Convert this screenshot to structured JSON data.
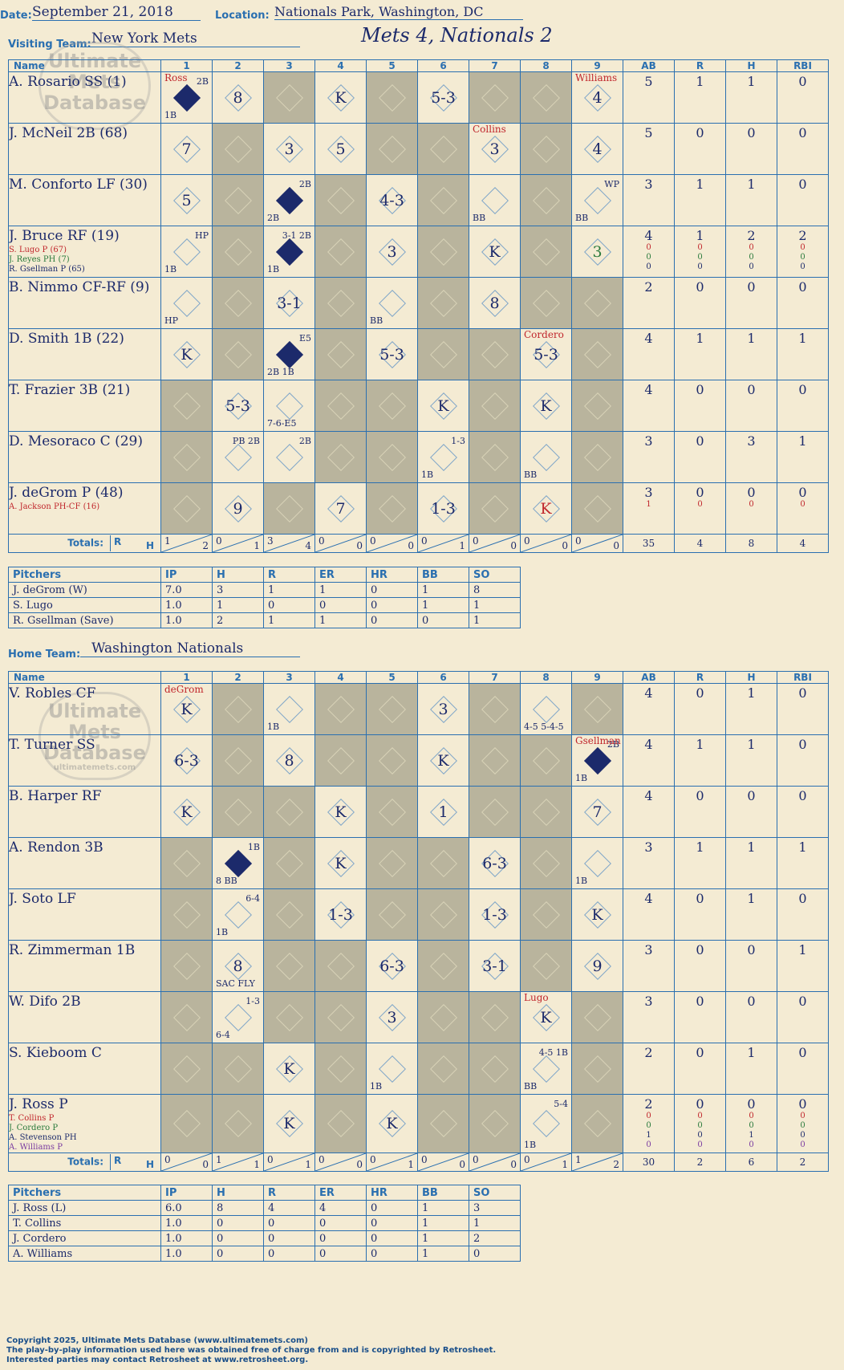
{
  "header": {
    "date_label": "Date:",
    "date": "September 21, 2018",
    "location_label": "Location:",
    "location": "Nationals Park, Washington, DC",
    "visiting_label": "Visiting Team:",
    "visiting_team": "New York Mets",
    "home_label": "Home Team:",
    "home_team": "Washington Nationals",
    "result": "Mets 4, Nationals 2"
  },
  "columns": {
    "name": "Name",
    "innings": [
      "1",
      "2",
      "3",
      "4",
      "5",
      "6",
      "7",
      "8",
      "9"
    ],
    "stats": [
      "AB",
      "R",
      "H",
      "RBI"
    ],
    "totals": "Totals:",
    "r": "R",
    "h": "H"
  },
  "pitch_columns": [
    "Pitchers",
    "IP",
    "H",
    "R",
    "ER",
    "HR",
    "BB",
    "SO"
  ],
  "watermark": {
    "line1": "Ultimate",
    "line2": "Mets",
    "line3": "Database",
    "site": "ultimatemets.com"
  },
  "visitors": {
    "players": [
      {
        "name": "A. Rosario SS (1)",
        "subs": [],
        "stats": [
          "5",
          "1",
          "1",
          "0"
        ],
        "substats": []
      },
      {
        "name": "J. McNeil 2B (68)",
        "subs": [],
        "stats": [
          "5",
          "0",
          "0",
          "0"
        ],
        "substats": []
      },
      {
        "name": "M. Conforto LF (30)",
        "subs": [],
        "stats": [
          "3",
          "1",
          "1",
          "0"
        ],
        "substats": []
      },
      {
        "name": "J. Bruce RF (19)",
        "subs": [
          "S. Lugo P (67)",
          "J. Reyes PH (7)",
          "R. Gsellman P (65)"
        ],
        "stats": [
          "4",
          "1",
          "2",
          "2"
        ],
        "substats": [
          [
            "0",
            "0",
            "0",
            "0"
          ],
          [
            "0",
            "0",
            "0",
            "0"
          ],
          [
            "0",
            "0",
            "0",
            "0"
          ]
        ]
      },
      {
        "name": "B. Nimmo CF-RF (9)",
        "subs": [],
        "stats": [
          "2",
          "0",
          "0",
          "0"
        ],
        "substats": []
      },
      {
        "name": "D. Smith 1B (22)",
        "subs": [],
        "stats": [
          "4",
          "1",
          "1",
          "1"
        ],
        "substats": []
      },
      {
        "name": "T. Frazier 3B (21)",
        "subs": [],
        "stats": [
          "4",
          "0",
          "0",
          "0"
        ],
        "substats": []
      },
      {
        "name": "D. Mesoraco C (29)",
        "subs": [],
        "stats": [
          "3",
          "0",
          "3",
          "1"
        ],
        "substats": []
      },
      {
        "name": "J. deGrom P (48)",
        "subs": [
          "A. Jackson PH-CF (16)"
        ],
        "stats": [
          "3",
          "0",
          "0",
          "0"
        ],
        "substats": [
          [
            "1",
            "0",
            "0",
            "0"
          ]
        ]
      }
    ],
    "cells": [
      [
        {
          "r": "",
          "tl": "2B",
          "bl": "1B",
          "scored": true,
          "top": "Ross"
        },
        {
          "r": "8"
        },
        {
          "r": "",
          "shade": true
        },
        {
          "r": "K"
        },
        {
          "r": "",
          "shade": true
        },
        {
          "r": "5-3"
        },
        {
          "r": "",
          "shade": true
        },
        {
          "r": "",
          "shade": true
        },
        {
          "r": "4",
          "top": "Williams"
        }
      ],
      [
        {
          "r": "7"
        },
        {
          "r": "",
          "shade": true
        },
        {
          "r": "3"
        },
        {
          "r": "5"
        },
        {
          "r": "",
          "shade": true
        },
        {
          "r": "",
          "shade": true
        },
        {
          "r": "3",
          "top": "Collins"
        },
        {
          "r": "",
          "shade": true
        },
        {
          "r": "4"
        }
      ],
      [
        {
          "r": "5"
        },
        {
          "r": "",
          "shade": true
        },
        {
          "r": "",
          "tl": "2B",
          "bl": "2B",
          "scored": true
        },
        {
          "r": "",
          "shade": true
        },
        {
          "r": "4-3"
        },
        {
          "r": "",
          "shade": true
        },
        {
          "r": "",
          "bl": "BB"
        },
        {
          "r": "",
          "shade": true
        },
        {
          "r": "",
          "tl": "WP",
          "bl": "BB"
        }
      ],
      [
        {
          "r": "",
          "tl": "HP",
          "bl": "1B"
        },
        {
          "r": "",
          "shade": true
        },
        {
          "r": "",
          "tl": "3-1 2B",
          "bl": "1B",
          "scored": true
        },
        {
          "r": "",
          "shade": true
        },
        {
          "r": "3"
        },
        {
          "r": "",
          "shade": true
        },
        {
          "r": "K"
        },
        {
          "r": "",
          "shade": true
        },
        {
          "r": "3",
          "green": true
        }
      ],
      [
        {
          "r": "",
          "bl": "HP"
        },
        {
          "r": "",
          "shade": true
        },
        {
          "r": "3-1"
        },
        {
          "r": "",
          "shade": true
        },
        {
          "r": "",
          "bl": "BB"
        },
        {
          "r": "",
          "shade": true
        },
        {
          "r": "8"
        },
        {
          "r": "",
          "shade": true
        },
        {
          "r": "",
          "shade": true
        }
      ],
      [
        {
          "r": "K"
        },
        {
          "r": "",
          "shade": true
        },
        {
          "r": "",
          "tl": "E5",
          "bl": "2B 1B",
          "scored": true
        },
        {
          "r": "",
          "shade": true
        },
        {
          "r": "5-3"
        },
        {
          "r": "",
          "shade": true
        },
        {
          "r": "",
          "shade": true
        },
        {
          "r": "5-3",
          "top": "Cordero"
        },
        {
          "r": "",
          "shade": true
        }
      ],
      [
        {
          "r": "",
          "shade": true
        },
        {
          "r": "5-3"
        },
        {
          "r": "",
          "bl": "7-6-E5"
        },
        {
          "r": "",
          "shade": true
        },
        {
          "r": "",
          "shade": true
        },
        {
          "r": "K"
        },
        {
          "r": "",
          "shade": true
        },
        {
          "r": "K"
        },
        {
          "r": "",
          "shade": true
        }
      ],
      [
        {
          "r": "",
          "shade": true
        },
        {
          "r": "",
          "tl": "PB 2B"
        },
        {
          "r": "",
          "tl": "2B"
        },
        {
          "r": "",
          "shade": true
        },
        {
          "r": "",
          "shade": true
        },
        {
          "r": "",
          "tl": "1-3",
          "bl": "1B"
        },
        {
          "r": "",
          "shade": true
        },
        {
          "r": "",
          "bl": "BB"
        },
        {
          "r": "",
          "shade": true
        }
      ],
      [
        {
          "r": "",
          "shade": true
        },
        {
          "r": "9"
        },
        {
          "r": "",
          "shade": true
        },
        {
          "r": "7"
        },
        {
          "r": "",
          "shade": true
        },
        {
          "r": "1-3"
        },
        {
          "r": "",
          "shade": true
        },
        {
          "r": "K",
          "red": true
        },
        {
          "r": "",
          "shade": true
        }
      ]
    ],
    "inning_totals": [
      [
        "1",
        "2"
      ],
      [
        "0",
        "1"
      ],
      [
        "3",
        "4"
      ],
      [
        "0",
        "0"
      ],
      [
        "0",
        "0"
      ],
      [
        "0",
        "1"
      ],
      [
        "0",
        "0"
      ],
      [
        "0",
        "0"
      ],
      [
        "0",
        "0"
      ]
    ],
    "totals": [
      "35",
      "4",
      "8",
      "4"
    ],
    "pitchers": [
      [
        "J. deGrom (W)",
        "7.0",
        "3",
        "1",
        "1",
        "0",
        "1",
        "8"
      ],
      [
        "S. Lugo",
        "1.0",
        "1",
        "0",
        "0",
        "0",
        "1",
        "1"
      ],
      [
        "R. Gsellman (Save)",
        "1.0",
        "2",
        "1",
        "1",
        "0",
        "0",
        "1"
      ]
    ]
  },
  "home": {
    "players": [
      {
        "name": "V. Robles CF",
        "subs": [],
        "stats": [
          "4",
          "0",
          "1",
          "0"
        ],
        "substats": []
      },
      {
        "name": "T. Turner SS",
        "subs": [],
        "stats": [
          "4",
          "1",
          "1",
          "0"
        ],
        "substats": []
      },
      {
        "name": "B. Harper RF",
        "subs": [],
        "stats": [
          "4",
          "0",
          "0",
          "0"
        ],
        "substats": []
      },
      {
        "name": "A. Rendon 3B",
        "subs": [],
        "stats": [
          "3",
          "1",
          "1",
          "1"
        ],
        "substats": []
      },
      {
        "name": "J. Soto LF",
        "subs": [],
        "stats": [
          "4",
          "0",
          "1",
          "0"
        ],
        "substats": []
      },
      {
        "name": "R. Zimmerman 1B",
        "subs": [],
        "stats": [
          "3",
          "0",
          "0",
          "1"
        ],
        "substats": []
      },
      {
        "name": "W. Difo 2B",
        "subs": [],
        "stats": [
          "3",
          "0",
          "0",
          "0"
        ],
        "substats": []
      },
      {
        "name": "S. Kieboom C",
        "subs": [],
        "stats": [
          "2",
          "0",
          "1",
          "0"
        ],
        "substats": []
      },
      {
        "name": "J. Ross P",
        "subs": [
          "T. Collins P",
          "J. Cordero P",
          "A. Stevenson PH",
          "A. Williams P"
        ],
        "stats": [
          "2",
          "0",
          "0",
          "0"
        ],
        "substats": [
          [
            "0",
            "0",
            "0",
            "0"
          ],
          [
            "0",
            "0",
            "0",
            "0"
          ],
          [
            "1",
            "0",
            "1",
            "0"
          ],
          [
            "0",
            "0",
            "0",
            "0"
          ]
        ]
      }
    ],
    "cells": [
      [
        {
          "r": "K",
          "top": "deGrom"
        },
        {
          "r": "",
          "shade": true
        },
        {
          "r": "",
          "bl": "1B"
        },
        {
          "r": "",
          "shade": true
        },
        {
          "r": "",
          "shade": true
        },
        {
          "r": "3"
        },
        {
          "r": "",
          "shade": true
        },
        {
          "r": "",
          "bl": "4-5 5-4-5"
        },
        {
          "r": "",
          "shade": true
        }
      ],
      [
        {
          "r": "6-3"
        },
        {
          "r": "",
          "shade": true
        },
        {
          "r": "8"
        },
        {
          "r": "",
          "shade": true
        },
        {
          "r": "",
          "shade": true
        },
        {
          "r": "K"
        },
        {
          "r": "",
          "shade": true
        },
        {
          "r": "",
          "shade": true
        },
        {
          "r": "",
          "tl": "2B",
          "bl": "1B",
          "scored": true,
          "top": "Gsellman"
        }
      ],
      [
        {
          "r": "K"
        },
        {
          "r": "",
          "shade": true
        },
        {
          "r": "",
          "shade": true
        },
        {
          "r": "K"
        },
        {
          "r": "",
          "shade": true
        },
        {
          "r": "1"
        },
        {
          "r": "",
          "shade": true
        },
        {
          "r": "",
          "shade": true
        },
        {
          "r": "7"
        }
      ],
      [
        {
          "r": "",
          "shade": true
        },
        {
          "r": "",
          "tl": "1B",
          "bl": "8 BB",
          "scored": true
        },
        {
          "r": "",
          "shade": true
        },
        {
          "r": "K"
        },
        {
          "r": "",
          "shade": true
        },
        {
          "r": "",
          "shade": true
        },
        {
          "r": "6-3"
        },
        {
          "r": "",
          "shade": true
        },
        {
          "r": "",
          "bl": "1B"
        }
      ],
      [
        {
          "r": "",
          "shade": true
        },
        {
          "r": "",
          "tl": "6-4",
          "bl": "1B"
        },
        {
          "r": "",
          "shade": true
        },
        {
          "r": "1-3"
        },
        {
          "r": "",
          "shade": true
        },
        {
          "r": "",
          "shade": true
        },
        {
          "r": "1-3"
        },
        {
          "r": "",
          "shade": true
        },
        {
          "r": "K"
        }
      ],
      [
        {
          "r": "",
          "shade": true
        },
        {
          "r": "8",
          "bl": "SAC FLY"
        },
        {
          "r": "",
          "shade": true
        },
        {
          "r": "",
          "shade": true
        },
        {
          "r": "6-3"
        },
        {
          "r": "",
          "shade": true
        },
        {
          "r": "3-1"
        },
        {
          "r": "",
          "shade": true
        },
        {
          "r": "9"
        }
      ],
      [
        {
          "r": "",
          "shade": true
        },
        {
          "r": "",
          "tl": "1-3",
          "bl": "6-4"
        },
        {
          "r": "",
          "shade": true
        },
        {
          "r": "",
          "shade": true
        },
        {
          "r": "3"
        },
        {
          "r": "",
          "shade": true
        },
        {
          "r": "",
          "shade": true
        },
        {
          "r": "K",
          "top": "Lugo"
        },
        {
          "r": "",
          "shade": true
        }
      ],
      [
        {
          "r": "",
          "shade": true
        },
        {
          "r": "",
          "shade": true
        },
        {
          "r": "K"
        },
        {
          "r": "",
          "shade": true
        },
        {
          "r": "",
          "bl": "1B"
        },
        {
          "r": "",
          "shade": true
        },
        {
          "r": "",
          "shade": true
        },
        {
          "r": "",
          "tl": "4-5 1B",
          "bl": "BB"
        },
        {
          "r": "",
          "shade": true
        }
      ],
      [
        {
          "r": "",
          "shade": true
        },
        {
          "r": "",
          "shade": true
        },
        {
          "r": "K"
        },
        {
          "r": "",
          "shade": true
        },
        {
          "r": "K"
        },
        {
          "r": "",
          "shade": true
        },
        {
          "r": "",
          "shade": true
        },
        {
          "r": "",
          "tl": "5-4",
          "bl": "1B"
        },
        {
          "r": "",
          "shade": true
        }
      ]
    ],
    "inning_totals": [
      [
        "0",
        "0"
      ],
      [
        "1",
        "1"
      ],
      [
        "0",
        "1"
      ],
      [
        "0",
        "0"
      ],
      [
        "0",
        "1"
      ],
      [
        "0",
        "0"
      ],
      [
        "0",
        "0"
      ],
      [
        "0",
        "1"
      ],
      [
        "1",
        "2"
      ]
    ],
    "totals": [
      "30",
      "2",
      "6",
      "2"
    ],
    "pitchers": [
      [
        "J. Ross (L)",
        "6.0",
        "8",
        "4",
        "4",
        "0",
        "1",
        "3"
      ],
      [
        "T. Collins",
        "1.0",
        "0",
        "0",
        "0",
        "0",
        "1",
        "1"
      ],
      [
        "J. Cordero",
        "1.0",
        "0",
        "0",
        "0",
        "0",
        "1",
        "2"
      ],
      [
        "A. Williams",
        "1.0",
        "0",
        "0",
        "0",
        "0",
        "1",
        "0"
      ]
    ]
  },
  "footer": {
    "line1": "Copyright 2025, Ultimate Mets Database (www.ultimatemets.com)",
    "line2": "The play-by-play information used here was obtained free of charge from and is copyrighted by Retrosheet.",
    "line3": "Interested parties may contact Retrosheet at www.retrosheet.org."
  }
}
